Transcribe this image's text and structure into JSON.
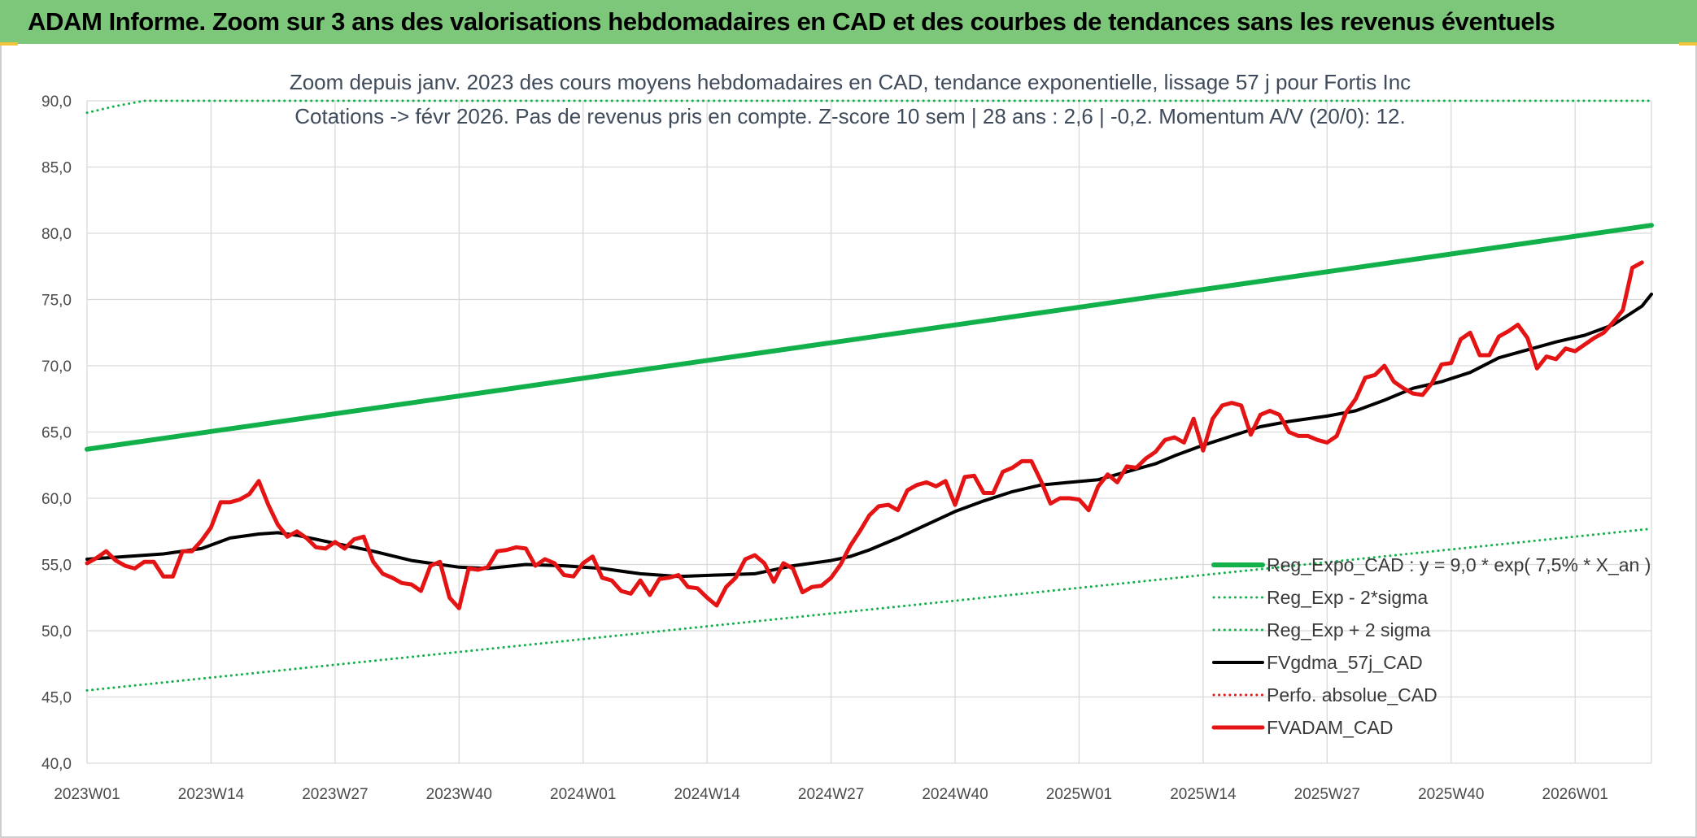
{
  "header": {
    "title": "ADAM Informe. Zoom sur 3 ans des valorisations hebdomadaires en CAD et des courbes de tendances sans les revenus éventuels"
  },
  "colors": {
    "banner": "#7dc77a",
    "reg_green": "#12b04a",
    "red": "#e51414",
    "black": "#000000",
    "grid": "#d9d9d9"
  },
  "chart_data": {
    "type": "line",
    "title_lines": [
      "Zoom depuis janv. 2023 des cours moyens hebdomadaires en CAD, tendance exponentielle, lissage 57 j pour Fortis Inc",
      "Cotations -> févr 2026. Pas de revenus pris en compte. Z-score 10 sem | 28 ans : 2,6 | -0,2. Momentum A/V (20/0): 12."
    ],
    "ylim": [
      40,
      90
    ],
    "y_ticks": [
      "40,0",
      "45,0",
      "50,0",
      "55,0",
      "60,0",
      "65,0",
      "70,0",
      "75,0",
      "80,0",
      "85,0",
      "90,0"
    ],
    "x_ticks": [
      "2023W01",
      "2023W14",
      "2023W27",
      "2023W40",
      "2024W01",
      "2024W14",
      "2024W27",
      "2024W40",
      "2025W01",
      "2025W14",
      "2025W27",
      "2025W40",
      "2026W01"
    ],
    "weeks_total": 165,
    "legend_position": "bottom-right",
    "series": [
      {
        "name": "Reg_Expo_CAD : y = 9,0 * exp( 7,5% *  X_an )",
        "color": "#12b04a",
        "style": "solid",
        "width": 6,
        "points": [
          [
            0,
            63.7
          ],
          [
            164,
            80.6
          ]
        ]
      },
      {
        "name": "Reg_Exp - 2*sigma",
        "color": "#12b04a",
        "style": "dotted",
        "width": 3,
        "points": [
          [
            0,
            45.5
          ],
          [
            164,
            57.7
          ]
        ]
      },
      {
        "name": "Reg_Exp + 2 sigma",
        "color": "#12b04a",
        "style": "dotted",
        "width": 3,
        "points": [
          [
            0,
            89.1
          ],
          [
            3,
            89.6
          ],
          [
            6,
            90.0
          ],
          [
            164,
            90.0
          ]
        ]
      },
      {
        "name": "FVgdma_57j_CAD",
        "color": "#000000",
        "style": "solid",
        "width": 4,
        "points": [
          [
            0,
            55.4
          ],
          [
            4,
            55.6
          ],
          [
            8,
            55.8
          ],
          [
            12,
            56.2
          ],
          [
            15,
            57.0
          ],
          [
            18,
            57.3
          ],
          [
            20,
            57.4
          ],
          [
            22,
            57.2
          ],
          [
            26,
            56.6
          ],
          [
            30,
            56.0
          ],
          [
            34,
            55.3
          ],
          [
            39,
            54.8
          ],
          [
            42,
            54.7
          ],
          [
            46,
            55.0
          ],
          [
            50,
            54.9
          ],
          [
            54,
            54.7
          ],
          [
            58,
            54.3
          ],
          [
            62,
            54.1
          ],
          [
            66,
            54.2
          ],
          [
            70,
            54.3
          ],
          [
            74,
            54.9
          ],
          [
            78,
            55.3
          ],
          [
            80,
            55.6
          ],
          [
            82,
            56.1
          ],
          [
            85,
            57.0
          ],
          [
            88,
            58.0
          ],
          [
            91,
            59.0
          ],
          [
            94,
            59.8
          ],
          [
            97,
            60.5
          ],
          [
            100,
            61.0
          ],
          [
            103,
            61.2
          ],
          [
            106,
            61.4
          ],
          [
            109,
            62.0
          ],
          [
            112,
            62.6
          ],
          [
            114,
            63.2
          ],
          [
            117,
            64.0
          ],
          [
            120,
            64.7
          ],
          [
            123,
            65.4
          ],
          [
            126,
            65.8
          ],
          [
            130,
            66.2
          ],
          [
            133,
            66.6
          ],
          [
            136,
            67.4
          ],
          [
            139,
            68.3
          ],
          [
            142,
            68.8
          ],
          [
            145,
            69.5
          ],
          [
            148,
            70.6
          ],
          [
            151,
            71.2
          ],
          [
            154,
            71.8
          ],
          [
            157,
            72.3
          ],
          [
            160,
            73.1
          ],
          [
            163,
            74.5
          ],
          [
            164,
            75.4
          ]
        ]
      },
      {
        "name": "Perfo. absolue_CAD",
        "color": "#e51414",
        "style": "dotted",
        "width": 3,
        "points": []
      },
      {
        "name": "FVADAM_CAD",
        "color": "#e51414",
        "style": "solid",
        "width": 5,
        "points": [
          [
            0,
            55.1
          ],
          [
            1,
            55.5
          ],
          [
            2,
            56.0
          ],
          [
            3,
            55.3
          ],
          [
            4,
            54.9
          ],
          [
            5,
            54.7
          ],
          [
            6,
            55.2
          ],
          [
            7,
            55.2
          ],
          [
            8,
            54.1
          ],
          [
            9,
            54.1
          ],
          [
            10,
            56.0
          ],
          [
            11,
            56.0
          ],
          [
            12,
            56.8
          ],
          [
            13,
            57.8
          ],
          [
            14,
            59.7
          ],
          [
            15,
            59.7
          ],
          [
            16,
            59.9
          ],
          [
            17,
            60.3
          ],
          [
            18,
            61.3
          ],
          [
            19,
            59.5
          ],
          [
            20,
            58.0
          ],
          [
            21,
            57.1
          ],
          [
            22,
            57.5
          ],
          [
            23,
            57.0
          ],
          [
            24,
            56.3
          ],
          [
            25,
            56.2
          ],
          [
            26,
            56.7
          ],
          [
            27,
            56.2
          ],
          [
            28,
            56.9
          ],
          [
            29,
            57.1
          ],
          [
            30,
            55.2
          ],
          [
            31,
            54.3
          ],
          [
            32,
            54.0
          ],
          [
            33,
            53.6
          ],
          [
            34,
            53.5
          ],
          [
            35,
            53.0
          ],
          [
            36,
            54.9
          ],
          [
            37,
            55.2
          ],
          [
            38,
            52.5
          ],
          [
            39,
            51.7
          ],
          [
            40,
            54.7
          ],
          [
            41,
            54.6
          ],
          [
            42,
            54.8
          ],
          [
            43,
            56.0
          ],
          [
            44,
            56.1
          ],
          [
            45,
            56.3
          ],
          [
            46,
            56.2
          ],
          [
            47,
            54.9
          ],
          [
            48,
            55.4
          ],
          [
            49,
            55.1
          ],
          [
            50,
            54.2
          ],
          [
            51,
            54.1
          ],
          [
            52,
            55.1
          ],
          [
            53,
            55.6
          ],
          [
            54,
            54.0
          ],
          [
            55,
            53.8
          ],
          [
            56,
            53.0
          ],
          [
            57,
            52.8
          ],
          [
            58,
            53.8
          ],
          [
            59,
            52.7
          ],
          [
            60,
            53.9
          ],
          [
            61,
            54.0
          ],
          [
            62,
            54.2
          ],
          [
            63,
            53.3
          ],
          [
            64,
            53.2
          ],
          [
            65,
            52.5
          ],
          [
            66,
            51.9
          ],
          [
            67,
            53.3
          ],
          [
            68,
            54.0
          ],
          [
            69,
            55.4
          ],
          [
            70,
            55.7
          ],
          [
            71,
            55.1
          ],
          [
            72,
            53.7
          ],
          [
            73,
            55.1
          ],
          [
            74,
            54.7
          ],
          [
            75,
            52.9
          ],
          [
            76,
            53.3
          ],
          [
            77,
            53.4
          ],
          [
            78,
            54.0
          ],
          [
            79,
            55.0
          ],
          [
            80,
            56.4
          ],
          [
            81,
            57.5
          ],
          [
            82,
            58.7
          ],
          [
            83,
            59.4
          ],
          [
            84,
            59.5
          ],
          [
            85,
            59.1
          ],
          [
            86,
            60.6
          ],
          [
            87,
            61.0
          ],
          [
            88,
            61.2
          ],
          [
            89,
            60.9
          ],
          [
            90,
            61.3
          ],
          [
            91,
            59.5
          ],
          [
            92,
            61.6
          ],
          [
            93,
            61.7
          ],
          [
            94,
            60.4
          ],
          [
            95,
            60.4
          ],
          [
            96,
            62.0
          ],
          [
            97,
            62.3
          ],
          [
            98,
            62.8
          ],
          [
            99,
            62.8
          ],
          [
            100,
            61.3
          ],
          [
            101,
            59.6
          ],
          [
            102,
            60.0
          ],
          [
            103,
            60.0
          ],
          [
            104,
            59.9
          ],
          [
            105,
            59.1
          ],
          [
            106,
            60.9
          ],
          [
            107,
            61.8
          ],
          [
            108,
            61.2
          ],
          [
            109,
            62.4
          ],
          [
            110,
            62.3
          ],
          [
            111,
            63.0
          ],
          [
            112,
            63.5
          ],
          [
            113,
            64.4
          ],
          [
            114,
            64.6
          ],
          [
            115,
            64.2
          ],
          [
            116,
            66.0
          ],
          [
            117,
            63.6
          ],
          [
            118,
            66.0
          ],
          [
            119,
            67.0
          ],
          [
            120,
            67.2
          ],
          [
            121,
            67.0
          ],
          [
            122,
            64.8
          ],
          [
            123,
            66.3
          ],
          [
            124,
            66.6
          ],
          [
            125,
            66.3
          ],
          [
            126,
            65.0
          ],
          [
            127,
            64.7
          ],
          [
            128,
            64.7
          ],
          [
            129,
            64.4
          ],
          [
            130,
            64.2
          ],
          [
            131,
            64.7
          ],
          [
            132,
            66.5
          ],
          [
            133,
            67.5
          ],
          [
            134,
            69.1
          ],
          [
            135,
            69.3
          ],
          [
            136,
            70.0
          ],
          [
            137,
            68.8
          ],
          [
            138,
            68.3
          ],
          [
            139,
            67.9
          ],
          [
            140,
            67.8
          ],
          [
            141,
            68.7
          ],
          [
            142,
            70.1
          ],
          [
            143,
            70.2
          ],
          [
            144,
            72.0
          ],
          [
            145,
            72.5
          ],
          [
            146,
            70.8
          ],
          [
            147,
            70.8
          ],
          [
            148,
            72.2
          ],
          [
            149,
            72.6
          ],
          [
            150,
            73.1
          ],
          [
            151,
            72.1
          ],
          [
            152,
            69.8
          ],
          [
            153,
            70.7
          ],
          [
            154,
            70.5
          ],
          [
            155,
            71.3
          ],
          [
            156,
            71.1
          ],
          [
            157,
            71.6
          ],
          [
            158,
            72.1
          ],
          [
            159,
            72.5
          ],
          [
            160,
            73.3
          ],
          [
            161,
            74.2
          ],
          [
            162,
            77.4
          ],
          [
            163,
            77.8
          ]
        ]
      }
    ],
    "legend_order": [
      0,
      1,
      2,
      3,
      4,
      5
    ]
  }
}
